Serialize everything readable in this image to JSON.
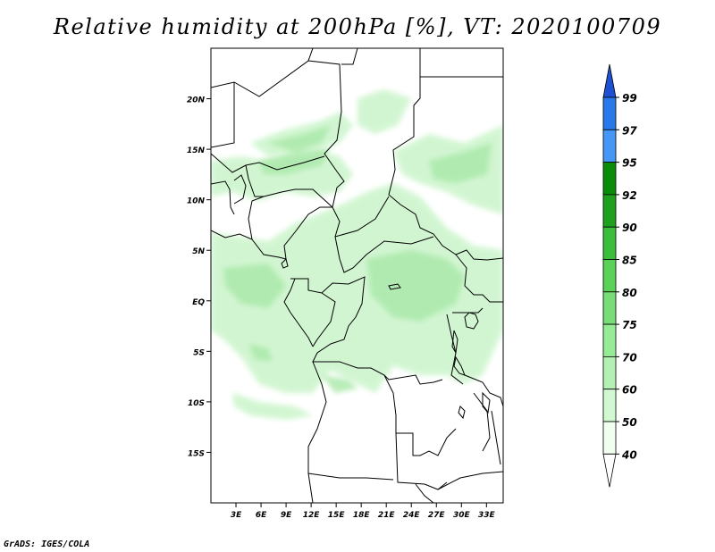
{
  "title": "Relative humidity at 200hPa [%], VT: 2020100709",
  "credit": "GrADS: IGES/COLA",
  "map": {
    "lat_labels": [
      "20N",
      "15N",
      "10N",
      "5N",
      "EQ",
      "5S",
      "10S",
      "15S"
    ],
    "lat_values": [
      20,
      15,
      10,
      5,
      0,
      -5,
      -10,
      -15
    ],
    "lon_labels": [
      "3E",
      "6E",
      "9E",
      "12E",
      "15E",
      "18E",
      "21E",
      "24E",
      "27E",
      "30E",
      "33E"
    ],
    "lon_values": [
      3,
      6,
      9,
      12,
      15,
      18,
      21,
      24,
      27,
      30,
      33
    ],
    "lon_range": [
      0,
      35
    ],
    "lat_range": [
      -20,
      25
    ]
  },
  "colorbar": {
    "levels": [
      "99",
      "97",
      "95",
      "92",
      "90",
      "85",
      "80",
      "75",
      "70",
      "60",
      "50",
      "40"
    ],
    "colors": [
      "#1e50d2",
      "#2878eb",
      "#4696f5",
      "#0a8c0a",
      "#1ea01e",
      "#3cbe3c",
      "#5ad25a",
      "#78dc78",
      "#96eb96",
      "#b4f0b4",
      "#d2f8d2",
      "#f0fff0"
    ],
    "top_color": "#1e50d2",
    "bottom_color": "#ffffff"
  }
}
